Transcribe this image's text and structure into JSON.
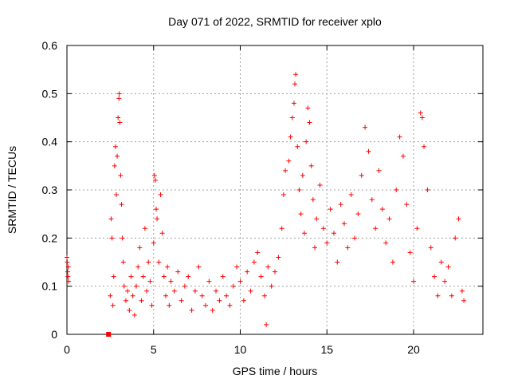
{
  "chart_data": {
    "type": "scatter",
    "title": "Day 071 of 2022, SRMTID for receiver xplo",
    "xlabel": "GPS time / hours",
    "ylabel": "SRMTID / TECUs",
    "xlim": [
      0,
      24
    ],
    "ylim": [
      0,
      0.6
    ],
    "grid": true,
    "marker": "+",
    "color": "#ff0000",
    "x_ticks": [
      0,
      5,
      10,
      15,
      20
    ],
    "x_tick_labels": [
      "0",
      "5",
      "10",
      "15",
      "20"
    ],
    "y_ticks": [
      0,
      0.1,
      0.2,
      0.3,
      0.4,
      0.5,
      0.6
    ],
    "y_tick_labels": [
      "0",
      "0.1",
      "0.2",
      "0.3",
      "0.4",
      "0.5",
      "0.6"
    ],
    "square_marker": {
      "x": 2.4,
      "y": 0.0
    },
    "series": [
      {
        "name": "SRMTID",
        "points": [
          [
            0.0,
            0.16
          ],
          [
            0.02,
            0.15
          ],
          [
            0.04,
            0.13
          ],
          [
            0.06,
            0.12
          ],
          [
            0.08,
            0.14
          ],
          [
            0.1,
            0.11
          ],
          [
            2.5,
            0.08
          ],
          [
            2.55,
            0.24
          ],
          [
            2.6,
            0.2
          ],
          [
            2.65,
            0.06
          ],
          [
            2.7,
            0.12
          ],
          [
            2.75,
            0.35
          ],
          [
            2.8,
            0.39
          ],
          [
            2.85,
            0.29
          ],
          [
            2.9,
            0.37
          ],
          [
            2.95,
            0.45
          ],
          [
            3.0,
            0.49
          ],
          [
            3.02,
            0.5
          ],
          [
            3.05,
            0.44
          ],
          [
            3.1,
            0.33
          ],
          [
            3.15,
            0.27
          ],
          [
            3.2,
            0.2
          ],
          [
            3.25,
            0.15
          ],
          [
            3.3,
            0.1
          ],
          [
            3.4,
            0.07
          ],
          [
            3.5,
            0.09
          ],
          [
            3.6,
            0.05
          ],
          [
            3.7,
            0.12
          ],
          [
            3.8,
            0.08
          ],
          [
            3.9,
            0.04
          ],
          [
            4.0,
            0.1
          ],
          [
            4.1,
            0.14
          ],
          [
            4.2,
            0.18
          ],
          [
            4.3,
            0.07
          ],
          [
            4.4,
            0.12
          ],
          [
            4.5,
            0.22
          ],
          [
            4.6,
            0.09
          ],
          [
            4.7,
            0.15
          ],
          [
            4.8,
            0.11
          ],
          [
            4.9,
            0.06
          ],
          [
            5.0,
            0.19
          ],
          [
            5.05,
            0.33
          ],
          [
            5.1,
            0.32
          ],
          [
            5.15,
            0.26
          ],
          [
            5.2,
            0.24
          ],
          [
            5.3,
            0.15
          ],
          [
            5.4,
            0.29
          ],
          [
            5.5,
            0.21
          ],
          [
            5.6,
            0.12
          ],
          [
            5.7,
            0.08
          ],
          [
            5.8,
            0.14
          ],
          [
            5.9,
            0.06
          ],
          [
            6.0,
            0.11
          ],
          [
            6.2,
            0.09
          ],
          [
            6.4,
            0.13
          ],
          [
            6.6,
            0.07
          ],
          [
            6.8,
            0.1
          ],
          [
            7.0,
            0.12
          ],
          [
            7.2,
            0.05
          ],
          [
            7.4,
            0.09
          ],
          [
            7.6,
            0.14
          ],
          [
            7.8,
            0.08
          ],
          [
            8.0,
            0.06
          ],
          [
            8.2,
            0.11
          ],
          [
            8.4,
            0.05
          ],
          [
            8.6,
            0.09
          ],
          [
            8.8,
            0.07
          ],
          [
            9.0,
            0.12
          ],
          [
            9.2,
            0.08
          ],
          [
            9.4,
            0.06
          ],
          [
            9.6,
            0.1
          ],
          [
            9.8,
            0.14
          ],
          [
            10.0,
            0.11
          ],
          [
            10.2,
            0.07
          ],
          [
            10.4,
            0.13
          ],
          [
            10.6,
            0.09
          ],
          [
            10.8,
            0.15
          ],
          [
            11.0,
            0.17
          ],
          [
            11.2,
            0.12
          ],
          [
            11.4,
            0.08
          ],
          [
            11.5,
            0.02
          ],
          [
            11.6,
            0.14
          ],
          [
            11.8,
            0.1
          ],
          [
            12.0,
            0.13
          ],
          [
            12.2,
            0.16
          ],
          [
            12.4,
            0.22
          ],
          [
            12.5,
            0.29
          ],
          [
            12.6,
            0.34
          ],
          [
            12.8,
            0.36
          ],
          [
            12.9,
            0.41
          ],
          [
            13.0,
            0.45
          ],
          [
            13.1,
            0.48
          ],
          [
            13.15,
            0.52
          ],
          [
            13.2,
            0.54
          ],
          [
            13.3,
            0.39
          ],
          [
            13.4,
            0.3
          ],
          [
            13.5,
            0.25
          ],
          [
            13.6,
            0.33
          ],
          [
            13.7,
            0.21
          ],
          [
            13.8,
            0.4
          ],
          [
            13.9,
            0.47
          ],
          [
            14.0,
            0.44
          ],
          [
            14.1,
            0.35
          ],
          [
            14.2,
            0.28
          ],
          [
            14.3,
            0.18
          ],
          [
            14.4,
            0.24
          ],
          [
            14.6,
            0.31
          ],
          [
            14.8,
            0.22
          ],
          [
            15.0,
            0.19
          ],
          [
            15.2,
            0.26
          ],
          [
            15.4,
            0.21
          ],
          [
            15.6,
            0.15
          ],
          [
            15.8,
            0.27
          ],
          [
            16.0,
            0.23
          ],
          [
            16.2,
            0.18
          ],
          [
            16.4,
            0.29
          ],
          [
            16.6,
            0.2
          ],
          [
            16.8,
            0.25
          ],
          [
            17.0,
            0.33
          ],
          [
            17.2,
            0.43
          ],
          [
            17.4,
            0.38
          ],
          [
            17.6,
            0.28
          ],
          [
            17.8,
            0.22
          ],
          [
            18.0,
            0.34
          ],
          [
            18.2,
            0.26
          ],
          [
            18.4,
            0.19
          ],
          [
            18.6,
            0.24
          ],
          [
            18.8,
            0.15
          ],
          [
            19.0,
            0.3
          ],
          [
            19.2,
            0.41
          ],
          [
            19.4,
            0.37
          ],
          [
            19.6,
            0.27
          ],
          [
            19.8,
            0.17
          ],
          [
            20.0,
            0.11
          ],
          [
            20.2,
            0.22
          ],
          [
            20.4,
            0.46
          ],
          [
            20.5,
            0.45
          ],
          [
            20.6,
            0.39
          ],
          [
            20.8,
            0.3
          ],
          [
            21.0,
            0.18
          ],
          [
            21.2,
            0.12
          ],
          [
            21.4,
            0.08
          ],
          [
            21.6,
            0.15
          ],
          [
            21.8,
            0.11
          ],
          [
            22.0,
            0.14
          ],
          [
            22.2,
            0.08
          ],
          [
            22.4,
            0.2
          ],
          [
            22.6,
            0.24
          ],
          [
            22.8,
            0.09
          ],
          [
            22.9,
            0.07
          ]
        ]
      }
    ]
  }
}
